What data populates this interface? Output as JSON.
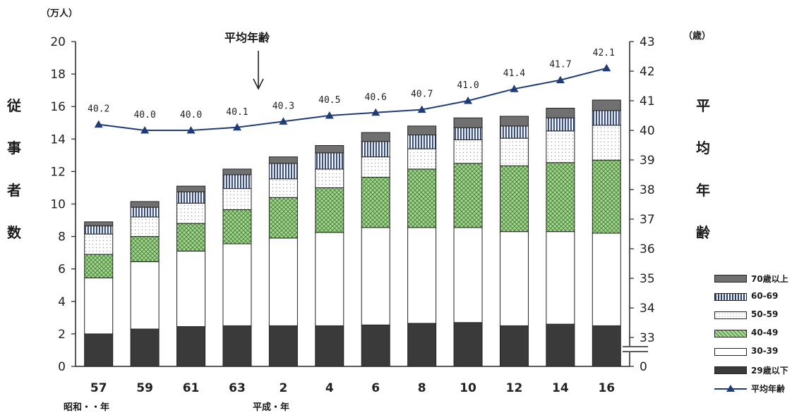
{
  "chart_data": {
    "type": "bar",
    "stacked": true,
    "categories": [
      "57",
      "59",
      "61",
      "63",
      "2",
      "4",
      "6",
      "8",
      "10",
      "12",
      "14",
      "16"
    ],
    "era_labels": [
      "昭和・・年",
      "平成・年"
    ],
    "y_left": {
      "label": "従事者数",
      "unit": "（万人）",
      "min": 0,
      "max": 20,
      "ticks": [
        0,
        2,
        4,
        6,
        8,
        10,
        12,
        14,
        16,
        18,
        20
      ]
    },
    "y_right": {
      "label": "平均年齢",
      "unit": "（歳）",
      "min": 32,
      "max": 43,
      "axis_break": true,
      "ticks": [
        0,
        33,
        34,
        35,
        36,
        37,
        38,
        39,
        40,
        41,
        42,
        43
      ]
    },
    "series": [
      {
        "name": "29歳以下",
        "values": [
          2.0,
          2.3,
          2.45,
          2.5,
          2.5,
          2.5,
          2.55,
          2.65,
          2.7,
          2.5,
          2.6,
          2.5
        ],
        "color": "#3a3a3a",
        "pattern": "solid-dark"
      },
      {
        "name": "30-39",
        "values": [
          3.45,
          4.15,
          4.65,
          5.05,
          5.4,
          5.75,
          6.0,
          5.9,
          5.85,
          5.8,
          5.7,
          5.7
        ],
        "color": "#ffffff",
        "pattern": "plain"
      },
      {
        "name": "40-49",
        "values": [
          1.45,
          1.55,
          1.7,
          2.1,
          2.5,
          2.75,
          3.1,
          3.6,
          3.95,
          4.05,
          4.25,
          4.5
        ],
        "color": "#9ccc8c",
        "pattern": "crosshatch-green"
      },
      {
        "name": "50-59",
        "values": [
          1.25,
          1.2,
          1.25,
          1.3,
          1.15,
          1.15,
          1.25,
          1.25,
          1.45,
          1.7,
          1.95,
          2.15
        ],
        "color": "#ffffff",
        "pattern": "dotted"
      },
      {
        "name": "60-69",
        "values": [
          0.5,
          0.6,
          0.7,
          0.85,
          0.95,
          1.0,
          0.95,
          0.85,
          0.75,
          0.75,
          0.8,
          0.9
        ],
        "color": "#d8e4f4",
        "pattern": "vertical-stripes"
      },
      {
        "name": "70歳以上",
        "values": [
          0.25,
          0.35,
          0.35,
          0.35,
          0.4,
          0.45,
          0.55,
          0.55,
          0.6,
          0.6,
          0.6,
          0.65
        ],
        "color": "#707070",
        "pattern": "solid-gray"
      }
    ],
    "line": {
      "name": "平均年齢",
      "axis": "right",
      "values": [
        40.2,
        40.0,
        40.0,
        40.1,
        40.3,
        40.5,
        40.6,
        40.7,
        41.0,
        41.4,
        41.7,
        42.1
      ],
      "labels": [
        "40.2",
        "40.0",
        "40.0",
        "40.1",
        "40.3",
        "40.5",
        "40.6",
        "40.7",
        "41.0",
        "41.4",
        "41.7",
        "42.1"
      ],
      "color": "#1f3c78",
      "marker": "triangle"
    },
    "annotation": "平均年齢",
    "legend_position": "right"
  }
}
